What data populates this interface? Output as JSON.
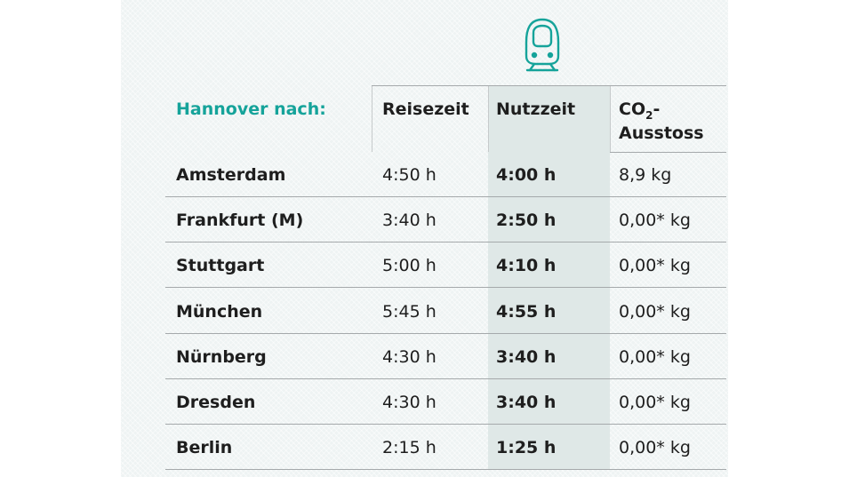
{
  "header": {
    "route_label": "Hannover nach:",
    "travel_time": "Reisezeit",
    "usable_time": "Nutzzeit",
    "co2_prefix": "CO",
    "co2_subscript": "2",
    "co2_suffix": "-",
    "co2_line2": "Ausstoss"
  },
  "icon": "train-front-icon",
  "colors": {
    "accent": "#15a39a",
    "highlight_column": "#dfe8e7"
  },
  "rows": [
    {
      "city": "Amsterdam",
      "travel": "4:50 h",
      "usable": "4:00 h",
      "co2": "8,9 kg"
    },
    {
      "city": "Frankfurt (M)",
      "travel": "3:40 h",
      "usable": "2:50 h",
      "co2": "0,00* kg"
    },
    {
      "city": "Stuttgart",
      "travel": "5:00 h",
      "usable": "4:10 h",
      "co2": "0,00* kg"
    },
    {
      "city": "München",
      "travel": "5:45 h",
      "usable": "4:55 h",
      "co2": "0,00* kg"
    },
    {
      "city": "Nürnberg",
      "travel": "4:30 h",
      "usable": "3:40 h",
      "co2": "0,00* kg"
    },
    {
      "city": "Dresden",
      "travel": "4:30 h",
      "usable": "3:40 h",
      "co2": "0,00* kg"
    },
    {
      "city": "Berlin",
      "travel": "2:15 h",
      "usable": "1:25 h",
      "co2": "0,00* kg"
    }
  ]
}
